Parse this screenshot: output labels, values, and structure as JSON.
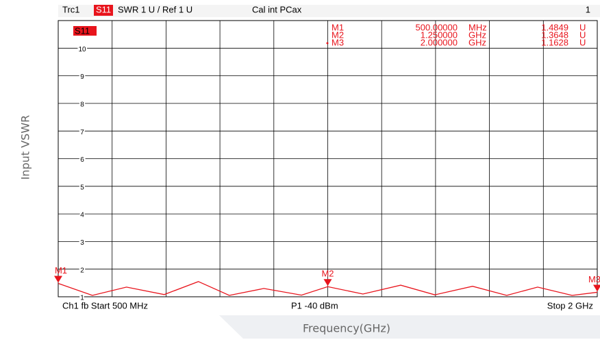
{
  "chart_data": {
    "type": "line",
    "header": {
      "trace": "Trc1",
      "param": "S11",
      "format": "SWR  1 U /  Ref 1 U",
      "cal": "Cal int PCax",
      "channel": "1"
    },
    "trace_label": "S11",
    "footer": {
      "start": "Ch1   fb   Start  500 MHz",
      "power": "P1   -40 dBm",
      "stop": "Stop  2 GHz"
    },
    "y_label": "Input VSWR",
    "x_label": "Frequency(GHz)",
    "xlim": [
      0.5,
      2
    ],
    "ylim": [
      1,
      11
    ],
    "yticks": [
      1,
      2,
      3,
      4,
      5,
      6,
      7,
      8,
      9,
      10
    ],
    "color": "#e8141c",
    "x": [
      0.5,
      0.595,
      0.69,
      0.795,
      0.89,
      0.976,
      1.072,
      1.177,
      1.25,
      1.348,
      1.453,
      1.548,
      1.653,
      1.748,
      1.834,
      1.93,
      2.0
    ],
    "values": [
      1.4849,
      1.05,
      1.35,
      1.08,
      1.55,
      1.05,
      1.3,
      1.06,
      1.3648,
      1.1,
      1.42,
      1.07,
      1.38,
      1.05,
      1.35,
      1.05,
      1.1628
    ],
    "markers": [
      {
        "name": "M1",
        "x": 0.5,
        "freq": "500.00000",
        "unit": "MHz",
        "value": 1.4849,
        "value_unit": "U"
      },
      {
        "name": "M2",
        "x": 1.25,
        "freq": "1.250000",
        "unit": "GHz",
        "value": 1.3648,
        "value_unit": "U"
      },
      {
        "name": "M3",
        "x": 2.0,
        "freq": "2.000000",
        "unit": "GHz",
        "value": 1.1628,
        "value_unit": "U"
      }
    ]
  }
}
